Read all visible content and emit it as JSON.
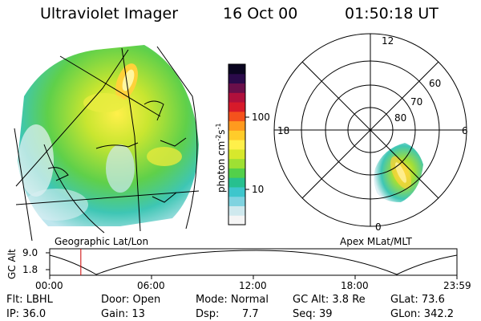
{
  "header": {
    "instrument": "Ultraviolet Imager",
    "date": "16 Oct 00",
    "time": "01:50:18 UT"
  },
  "colorbar": {
    "label": "photon cm",
    "label_exp1": "-2",
    "label_mid": "s",
    "label_exp2": "-1",
    "tick_labels": [
      "100",
      "10"
    ],
    "colors": [
      "#f5f5f5",
      "#cfe9ee",
      "#7fd3e0",
      "#3ec6cc",
      "#27c08f",
      "#53d04a",
      "#9ee033",
      "#d7e82c",
      "#fff04a",
      "#ffcc2a",
      "#ff9a1e",
      "#f4521c",
      "#d71a2a",
      "#b0103c",
      "#6a0f4a",
      "#2a0a4a",
      "#0a0520"
    ]
  },
  "geo_panel": {
    "label": "Geographic Lat/Lon"
  },
  "polar_panel": {
    "label": "Apex MLat/MLT",
    "mlt_labels": [
      "12",
      "18",
      "6",
      "0"
    ],
    "mlat_labels": [
      "60",
      "70",
      "80"
    ]
  },
  "altitude_plot": {
    "ylabel": "GC Alt",
    "y_ticks": [
      "9.0",
      "1.8"
    ],
    "x_ticks": [
      "00:00",
      "06:00",
      "12:00",
      "18:00",
      "23:59"
    ],
    "marker_time": "01:50",
    "marker_color": "#cc0000"
  },
  "info": {
    "filter": "Flt: LBHL",
    "door": "Door: Open",
    "mode": "Mode: Normal",
    "gc_alt": "GC Alt: 3.8 Re",
    "glat": "GLat: 73.6",
    "ip": "IP: 36.0",
    "gain": "Gain: 13",
    "dsp_label": "Dsp:",
    "dsp_value": "7.7",
    "seq": "Seq: 39",
    "glon": "GLon: 342.2"
  }
}
